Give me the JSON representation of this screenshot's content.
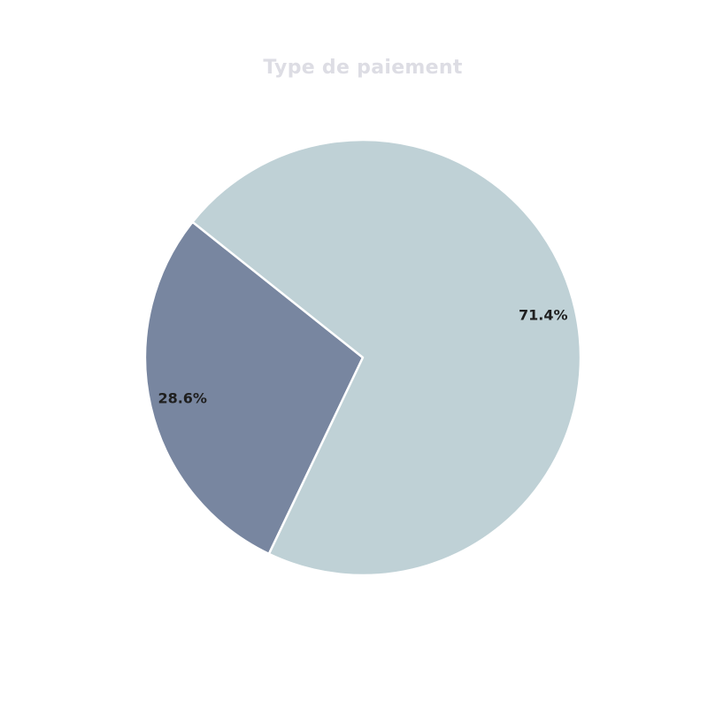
{
  "chart_data": {
    "type": "pie",
    "title": "Type de paiement",
    "slices": [
      {
        "value": 28.6,
        "label": "28.6%",
        "color": "#7886a0"
      },
      {
        "value": 71.4,
        "label": "71.4%",
        "color": "#bfd1d6"
      }
    ],
    "colors": {
      "title": "#dddde4",
      "edge": "#ffffff",
      "label": "#1f1f1f"
    }
  }
}
